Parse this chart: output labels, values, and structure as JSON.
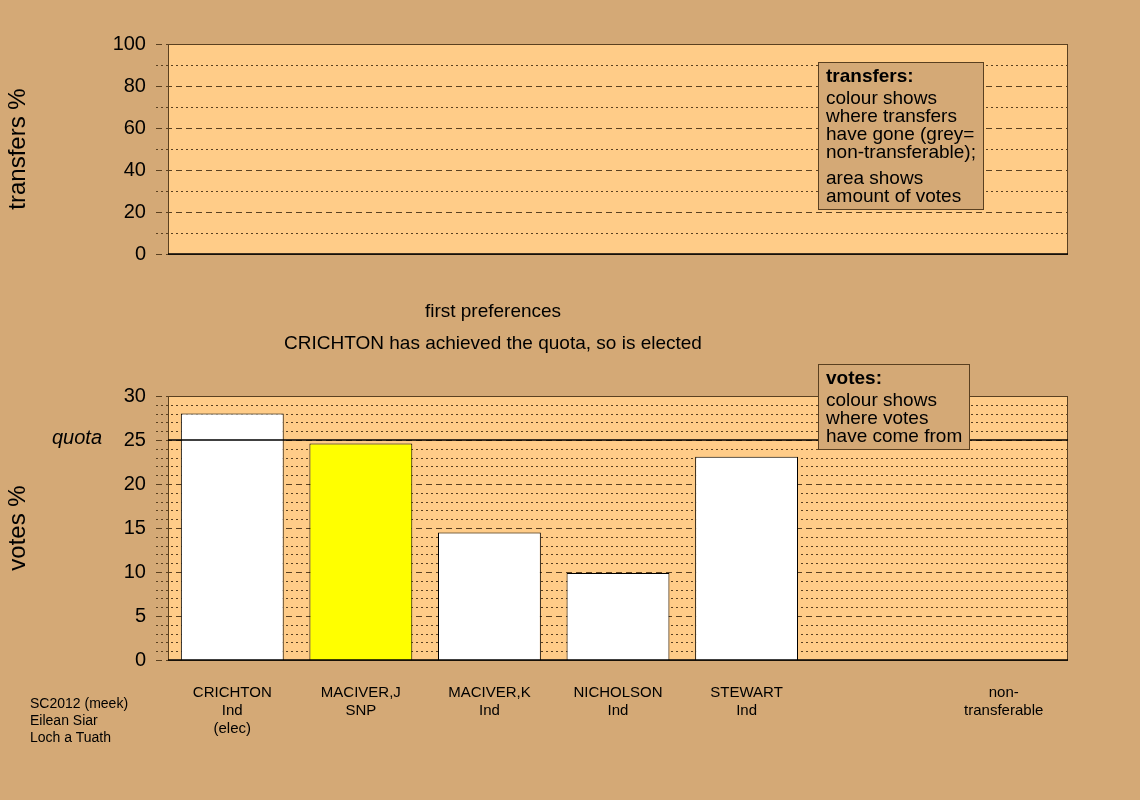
{
  "chart_data": [
    {
      "type": "bar",
      "categories": [
        null,
        null,
        null,
        null,
        null,
        null,
        null
      ],
      "values": [
        null,
        null,
        null,
        null,
        null,
        null,
        null
      ],
      "ylabel": "transfers %",
      "ylim": [
        0,
        100
      ],
      "yticks": [
        0,
        {
          "value": 10,
          "label": null
        },
        20,
        {
          "value": 30,
          "label": null
        },
        40,
        {
          "value": 50,
          "label": null
        },
        60,
        {
          "value": 70,
          "label": null
        },
        80,
        {
          "value": 90,
          "label": null
        },
        100
      ],
      "grid": "y",
      "tick_labels": "y",
      "annotations": [
        "transfers:\ncolour shows\nwhere transfers\nhave gone (grey=\nnon-transferable);\n\narea shows\namount of votes"
      ]
    },
    {
      "type": "bar",
      "title": "first preferences",
      "subtitle": "CRICHTON has achieved the quota, so is elected",
      "categories": [
        "CRICHTON\nInd\n(elec)",
        "MACIVER,J\nSNP",
        "MACIVER,K\nInd",
        "NICHOLSON\nInd",
        "STEWART\nInd",
        null,
        "non-\ntransferable"
      ],
      "values": [
        28.0,
        24.6,
        14.5,
        9.9,
        23.1,
        null,
        null
      ],
      "colors": [
        "#ffffff",
        "#ffff00",
        "#ffffff",
        "#ffffff",
        "#ffffff",
        "#ffffff",
        "#ffffff"
      ],
      "ylabel": "votes %",
      "ylim": [
        0,
        30
      ],
      "yticks": [
        0,
        {
          "value": 1,
          "label": null
        },
        {
          "value": 2,
          "label": null
        },
        {
          "value": 3,
          "label": null
        },
        {
          "value": 4,
          "label": null
        },
        5,
        {
          "value": 6,
          "label": null
        },
        {
          "value": 7,
          "label": null
        },
        {
          "value": 8,
          "label": null
        },
        {
          "value": 9,
          "label": null
        },
        10,
        {
          "value": 11,
          "label": null
        },
        {
          "value": 12,
          "label": null
        },
        {
          "value": 13,
          "label": null
        },
        {
          "value": 14,
          "label": null
        },
        15,
        {
          "value": 16,
          "label": null
        },
        {
          "value": 17,
          "label": null
        },
        {
          "value": 18,
          "label": null
        },
        {
          "value": 19,
          "label": null
        },
        20,
        {
          "value": 21,
          "label": null
        },
        {
          "value": 22,
          "label": null
        },
        {
          "value": 23,
          "label": null
        },
        {
          "value": 24,
          "label": null
        },
        25,
        {
          "value": 26,
          "label": null
        },
        {
          "value": 27,
          "label": null
        },
        {
          "value": 28,
          "label": null
        },
        {
          "value": 29,
          "label": null
        },
        30
      ],
      "grid": "y",
      "ref_lines": [
        {
          "axis": "y",
          "value": 25,
          "label": "quota",
          "color": "#000000"
        }
      ],
      "annotations": [
        "votes:\ncolour shows\nwhere votes\nhave come from",
        "SC2012 (meek)\nEilean Siar\nLoch a Tuath"
      ]
    }
  ]
}
